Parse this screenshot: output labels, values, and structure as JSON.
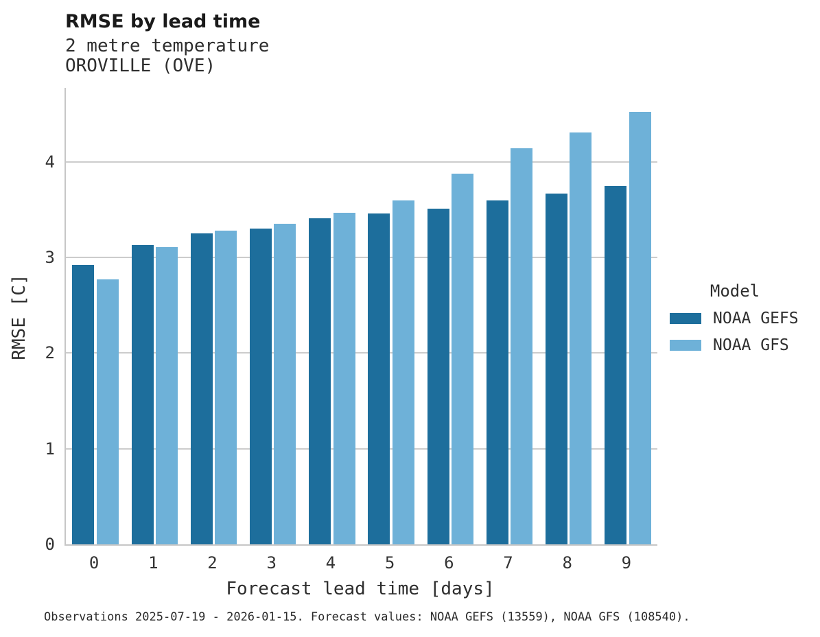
{
  "chart_data": {
    "type": "bar",
    "title": "RMSE by lead time",
    "subtitle": "2 metre temperature",
    "station": "OROVILLE (OVE)",
    "xlabel": "Forecast lead time [days]",
    "ylabel": "RMSE [C]",
    "categories": [
      "0",
      "1",
      "2",
      "3",
      "4",
      "5",
      "6",
      "7",
      "8",
      "9"
    ],
    "series": [
      {
        "name": "NOAA GEFS",
        "color": "#1d6e9c",
        "values": [
          2.92,
          3.13,
          3.25,
          3.3,
          3.41,
          3.46,
          3.51,
          3.6,
          3.67,
          3.75
        ]
      },
      {
        "name": "NOAA GFS",
        "color": "#6eb1d8",
        "values": [
          2.77,
          3.11,
          3.28,
          3.35,
          3.47,
          3.6,
          3.88,
          4.14,
          4.31,
          4.52
        ]
      }
    ],
    "ylim": [
      0,
      4.774
    ],
    "yticks": [
      0,
      1,
      2,
      3,
      4
    ],
    "grid": true,
    "legend_title": "Model",
    "legend_position": "right",
    "footnote": "Observations 2025-07-19 - 2026-01-15. Forecast values: NOAA GEFS (13559), NOAA GFS (108540)."
  }
}
